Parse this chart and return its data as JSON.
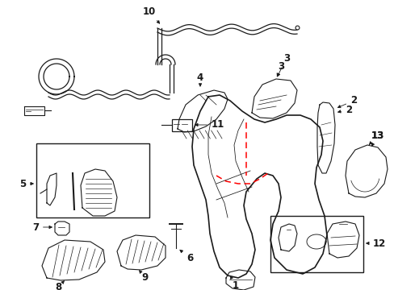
{
  "bg_color": "#ffffff",
  "line_color": "#1a1a1a",
  "red_color": "#ff0000",
  "lw_main": 1.2,
  "lw_thin": 0.8,
  "lw_cable": 0.9,
  "label_fontsize": 8.5,
  "figsize": [
    4.89,
    3.6
  ],
  "dpi": 100
}
